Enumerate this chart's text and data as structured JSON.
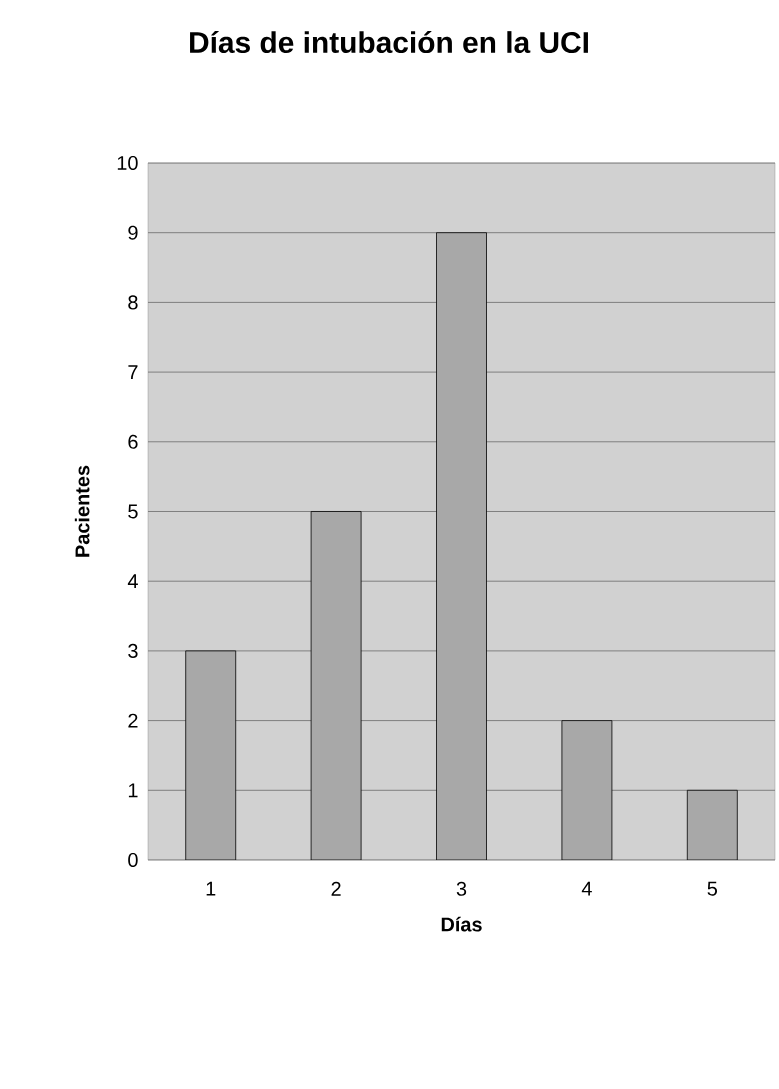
{
  "chart_data": {
    "type": "bar",
    "title": "Días de intubación en la UCI",
    "xlabel": "Días",
    "ylabel": "Pacientes",
    "categories": [
      "1",
      "2",
      "3",
      "4",
      "5"
    ],
    "values": [
      3,
      5,
      9,
      2,
      1
    ],
    "color": "#a8a8a8",
    "ylim": [
      0,
      10
    ],
    "yticks": [
      0,
      1,
      2,
      3,
      4,
      5,
      6,
      7,
      8,
      9,
      10
    ],
    "grid": "y"
  }
}
